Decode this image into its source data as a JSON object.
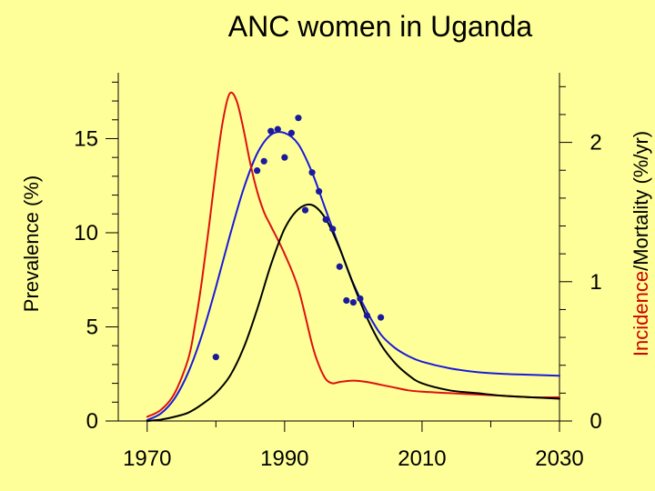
{
  "chart_data": {
    "type": "line",
    "title": "ANC women in Uganda",
    "xlabel": "",
    "ylabel_left": "Prevalence (%)",
    "ylabel_right_part1": "Incidence",
    "ylabel_right_part2": "/Mortality (%/yr)",
    "xlim": [
      1965,
      2030
    ],
    "ylim_left": [
      0,
      18.5
    ],
    "ylim_right": [
      0,
      2.5
    ],
    "x_ticks": [
      {
        "value": 1970,
        "label": "1970"
      },
      {
        "value": 1990,
        "label": "1990"
      },
      {
        "value": 2010,
        "label": "2010"
      },
      {
        "value": 2030,
        "label": "2030"
      }
    ],
    "y_left_ticks": [
      {
        "value": 0,
        "label": "0"
      },
      {
        "value": 5,
        "label": "5"
      },
      {
        "value": 10,
        "label": "10"
      },
      {
        "value": 15,
        "label": "15"
      }
    ],
    "y_right_ticks": [
      {
        "value": 0,
        "label": "0"
      },
      {
        "value": 1,
        "label": "1"
      },
      {
        "value": 2,
        "label": "2"
      }
    ],
    "colors": {
      "prevalence": "#1a1ad8",
      "incidence": "#dd1111",
      "mortality": "#000000",
      "observed": "#1a1a9a",
      "background": "#ffff99"
    },
    "series": [
      {
        "name": "Prevalence model",
        "axis": "left",
        "color": "#1a1ad8",
        "x": [
          1970,
          1972,
          1974,
          1976,
          1978,
          1980,
          1982,
          1984,
          1986,
          1988,
          1990,
          1992,
          1994,
          1996,
          1998,
          2000,
          2002,
          2004,
          2006,
          2008,
          2010,
          2014,
          2018,
          2022,
          2026,
          2030
        ],
        "y": [
          0.05,
          0.4,
          1.2,
          2.6,
          4.6,
          7.1,
          9.8,
          12.3,
          14.2,
          15.2,
          15.3,
          14.7,
          13.2,
          11.2,
          9.2,
          7.3,
          5.8,
          4.6,
          3.9,
          3.45,
          3.15,
          2.8,
          2.6,
          2.5,
          2.45,
          2.4
        ]
      },
      {
        "name": "Incidence model",
        "axis": "right",
        "color": "#dd1111",
        "x": [
          1970,
          1972,
          1974,
          1976,
          1977,
          1978,
          1979,
          1980,
          1981,
          1982,
          1983,
          1984,
          1985,
          1986,
          1987,
          1988,
          1990,
          1992,
          1994,
          1995,
          1996,
          1997,
          1998,
          2000,
          2002,
          2004,
          2006,
          2008,
          2010,
          2014,
          2018,
          2022,
          2026,
          2030
        ],
        "y": [
          0.03,
          0.08,
          0.2,
          0.45,
          0.7,
          1.02,
          1.4,
          1.8,
          2.15,
          2.35,
          2.3,
          2.1,
          1.85,
          1.65,
          1.5,
          1.4,
          1.2,
          0.95,
          0.55,
          0.4,
          0.3,
          0.27,
          0.28,
          0.29,
          0.28,
          0.26,
          0.24,
          0.22,
          0.21,
          0.2,
          0.19,
          0.18,
          0.17,
          0.17
        ]
      },
      {
        "name": "Mortality model",
        "axis": "right",
        "color": "#000000",
        "x": [
          1970,
          1972,
          1974,
          1976,
          1978,
          1980,
          1982,
          1984,
          1986,
          1988,
          1990,
          1992,
          1994,
          1996,
          1998,
          2000,
          2002,
          2004,
          2006,
          2008,
          2010,
          2014,
          2018,
          2022,
          2026,
          2030
        ],
        "y": [
          0.0,
          0.01,
          0.03,
          0.06,
          0.12,
          0.2,
          0.32,
          0.52,
          0.8,
          1.12,
          1.38,
          1.52,
          1.55,
          1.45,
          1.24,
          0.98,
          0.74,
          0.55,
          0.42,
          0.33,
          0.27,
          0.22,
          0.2,
          0.18,
          0.17,
          0.16
        ]
      }
    ],
    "points": {
      "name": "ANC surveillance data",
      "axis": "left",
      "color": "#1a1a9a",
      "x": [
        1980,
        1986,
        1987,
        1988,
        1989,
        1990,
        1991,
        1992,
        1993,
        1994,
        1995,
        1996,
        1997,
        1998,
        1999,
        2000,
        2001,
        2002,
        2004
      ],
      "y": [
        3.4,
        13.3,
        13.8,
        15.4,
        15.5,
        14.0,
        15.3,
        16.1,
        11.2,
        13.2,
        12.2,
        10.7,
        10.2,
        8.2,
        6.4,
        6.3,
        6.5,
        5.6,
        5.5
      ]
    }
  }
}
